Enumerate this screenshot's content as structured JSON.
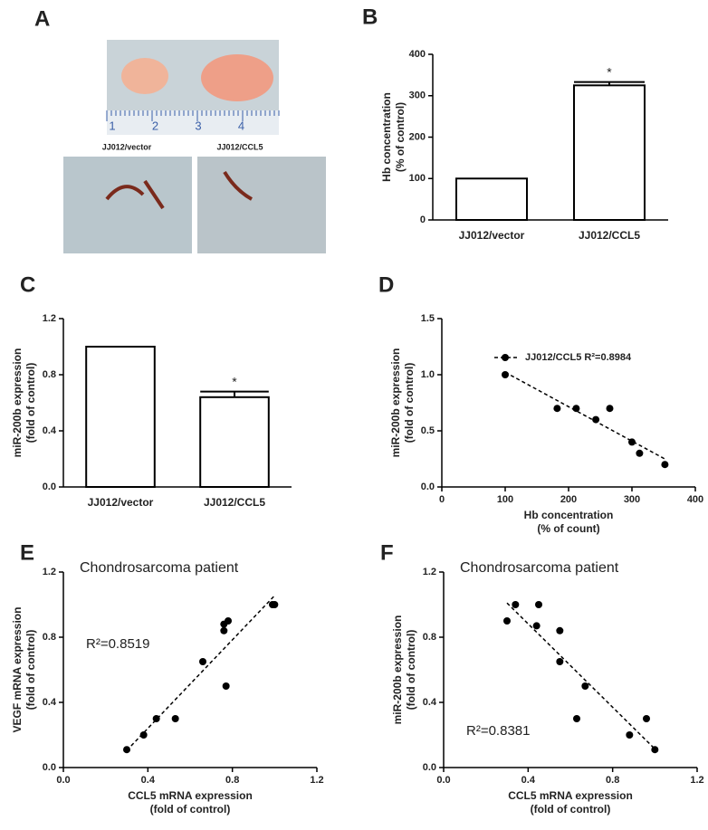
{
  "panel_labels": [
    "A",
    "B",
    "C",
    "D",
    "E",
    "F"
  ],
  "figure_a": {
    "captions": [
      "JJ012/vector",
      "JJ012/CCL5"
    ],
    "ruler_ticks": [
      1,
      2,
      3,
      4
    ]
  },
  "chart_data": [
    {
      "type": "bar",
      "categories": [
        "JJ012/vector",
        "JJ012/CCL5"
      ],
      "values": [
        100,
        325
      ],
      "errors": [
        0,
        8
      ],
      "y_label": [
        "Hb concentration",
        "(% of control)"
      ],
      "ylim": [
        0,
        400
      ],
      "yticks": [
        0,
        100,
        200,
        300,
        400
      ],
      "significance_label": "*",
      "color": "#ffffff"
    },
    {
      "type": "bar",
      "categories": [
        "JJ012/vector",
        "JJ012/CCL5"
      ],
      "values": [
        1.0,
        0.64
      ],
      "errors": [
        0,
        0.04
      ],
      "y_label": [
        "miR-200b expression",
        "(fold of control)"
      ],
      "ylim": [
        0,
        1.2
      ],
      "yticks": [
        {
          "value": 0,
          "label": "0.0"
        },
        0.4,
        0.8,
        1.2
      ],
      "significance_label": "*",
      "color": "#ffffff"
    },
    {
      "type": "scatter",
      "x": [
        100,
        182,
        212,
        243,
        265,
        300,
        312,
        352
      ],
      "values": [
        1.0,
        0.7,
        0.7,
        0.6,
        0.7,
        0.4,
        0.3,
        0.2
      ],
      "x_label": [
        "Hb concentration",
        "(% of count)"
      ],
      "y_label": [
        "miR-200b expression",
        "(fold of control)"
      ],
      "xlim": [
        0,
        400
      ],
      "xticks": [
        0,
        100,
        200,
        300,
        400
      ],
      "ylim": [
        0,
        1.5
      ],
      "yticks": [
        {
          "value": 0,
          "label": "0.0"
        },
        0.5,
        {
          "value": 1,
          "label": "1.0"
        },
        1.5
      ],
      "legend": "JJ012/CCL5 R²=0.8984"
    },
    {
      "type": "scatter",
      "x": [
        0.3,
        0.38,
        0.44,
        0.53,
        0.66,
        0.76,
        0.76,
        0.77,
        0.78,
        0.99,
        1.0
      ],
      "values": [
        0.11,
        0.2,
        0.3,
        0.3,
        0.65,
        0.84,
        0.88,
        0.5,
        0.9,
        1.0,
        1.0
      ],
      "x_label": [
        "CCL5 mRNA expression",
        "(fold of control)"
      ],
      "y_label": [
        "VEGF mRNA expression",
        "(fold of control)"
      ],
      "xlim": [
        0,
        1.2
      ],
      "xticks": [
        {
          "value": 0,
          "label": "0.0"
        },
        0.4,
        0.8,
        1.2
      ],
      "ylim": [
        0,
        1.2
      ],
      "yticks": [
        {
          "value": 0,
          "label": "0.0"
        },
        0.4,
        0.8,
        1.2
      ],
      "annotations": [
        "Chondrosarcoma patient",
        "R²=0.8519"
      ]
    },
    {
      "type": "scatter",
      "x": [
        0.3,
        0.34,
        0.44,
        0.45,
        0.55,
        0.55,
        0.63,
        0.67,
        0.88,
        0.96,
        1.0
      ],
      "values": [
        0.9,
        1.0,
        0.87,
        1.0,
        0.84,
        0.65,
        0.3,
        0.5,
        0.2,
        0.3,
        0.11
      ],
      "x_label": [
        "CCL5 mRNA expression",
        "(fold of control)"
      ],
      "y_label": [
        "miR-200b expression",
        "(fold of control)"
      ],
      "xlim": [
        0,
        1.2
      ],
      "xticks": [
        {
          "value": 0,
          "label": "0.0"
        },
        0.4,
        0.8,
        1.2
      ],
      "ylim": [
        0,
        1.2
      ],
      "yticks": [
        {
          "value": 0,
          "label": "0.0"
        },
        0.4,
        0.8,
        1.2
      ],
      "annotations": [
        "Chondrosarcoma patient",
        "R²=0.8381"
      ]
    }
  ]
}
